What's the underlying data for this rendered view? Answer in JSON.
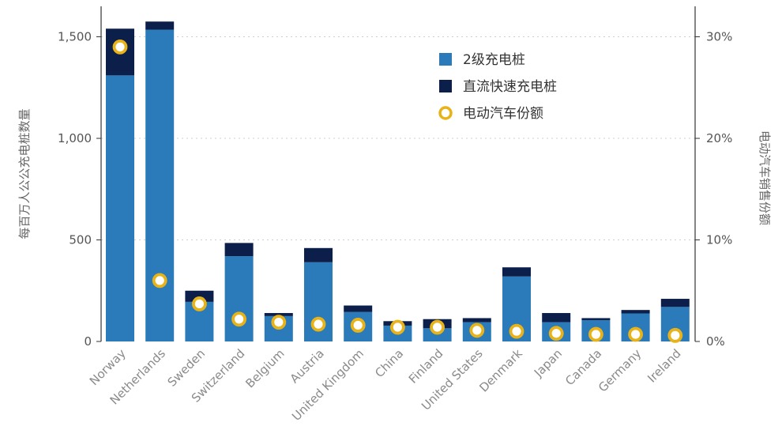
{
  "chart_data": {
    "type": "bar",
    "stacked": true,
    "title": "",
    "xlabel": "",
    "ylabel": "每百万人公公充电桩数量",
    "y2label": "电动汽车销售份额",
    "ylim": [
      0,
      1650
    ],
    "y2lim": [
      0,
      33
    ],
    "yticks": [
      "0",
      "500",
      "1,000",
      "1,500"
    ],
    "y2ticks": [
      "0%",
      "10%",
      "20%",
      "30%"
    ],
    "grid": true,
    "legend_position": "top-right",
    "categories": [
      "Norway",
      "Netherlands",
      "Sweden",
      "Switzerland",
      "Belgium",
      "Austria",
      "United Kingdom",
      "China",
      "Finland",
      "United States",
      "Denmark",
      "Japan",
      "Canada",
      "Germany",
      "Ireland"
    ],
    "series": [
      {
        "name": "2级充电桩",
        "axis": "left",
        "kind": "bar",
        "color": "#2b7bba",
        "values": [
          1310,
          1535,
          195,
          420,
          125,
          390,
          145,
          78,
          65,
          95,
          320,
          95,
          105,
          138,
          170
        ]
      },
      {
        "name": "直流快速充电桩",
        "axis": "left",
        "kind": "bar",
        "color": "#0c1f4a",
        "values": [
          230,
          40,
          55,
          65,
          15,
          70,
          32,
          22,
          45,
          20,
          45,
          45,
          10,
          17,
          40
        ]
      },
      {
        "name": "电动汽车销售份额",
        "legend_label": "电动汽车份额",
        "axis": "right",
        "kind": "marker",
        "color": "#e8b319",
        "values": [
          29,
          6,
          3.7,
          2.2,
          1.9,
          1.7,
          1.6,
          1.4,
          1.4,
          1.1,
          1.0,
          0.8,
          0.7,
          0.7,
          0.6
        ]
      }
    ]
  }
}
